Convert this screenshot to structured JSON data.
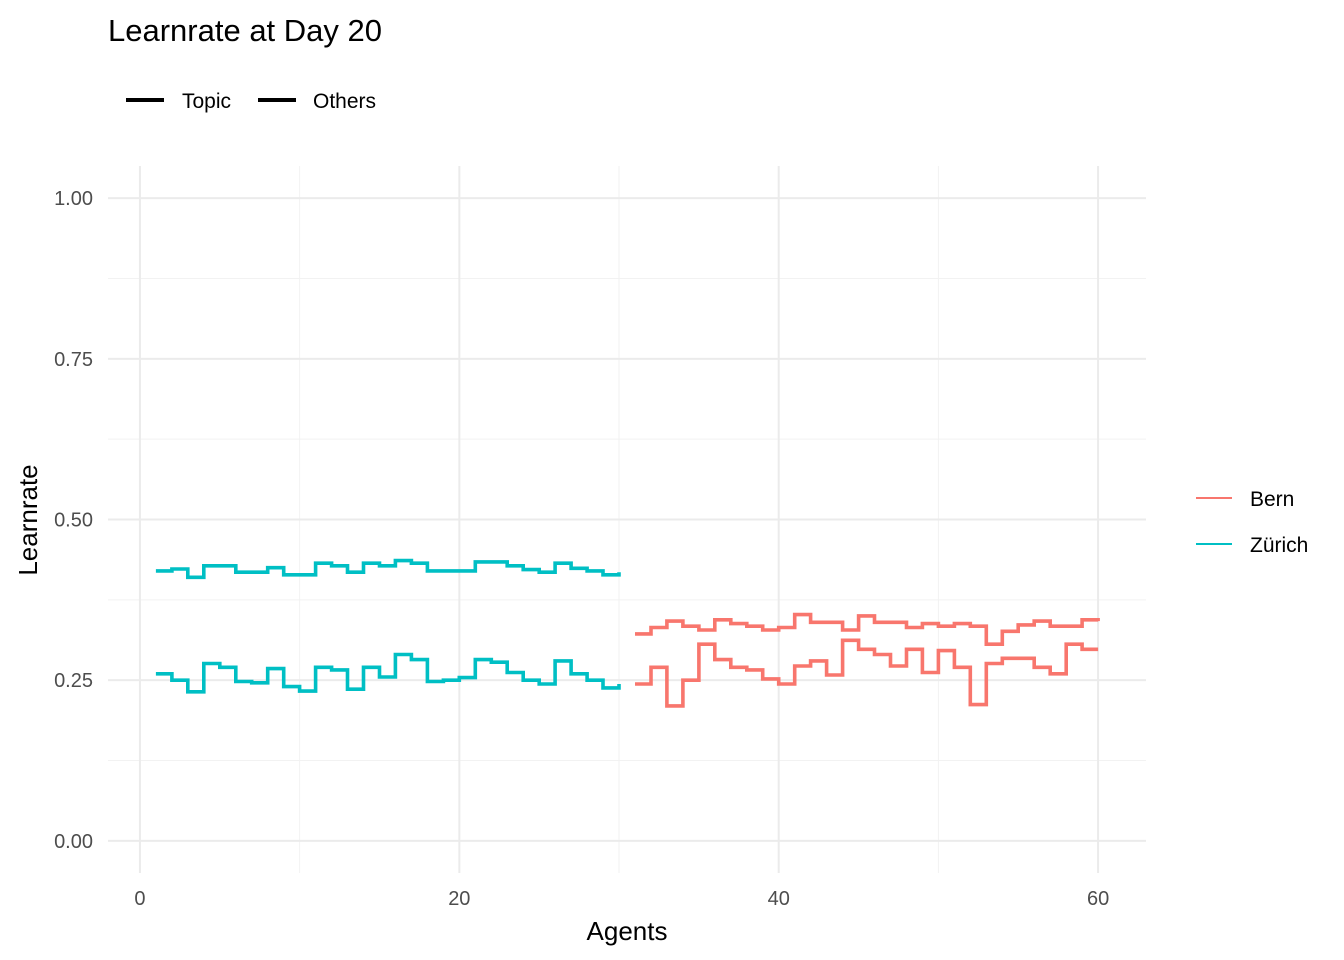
{
  "chart_data": {
    "type": "line",
    "step": true,
    "title": "Learnrate at Day 20",
    "xlabel": "Agents",
    "ylabel": "Learnrate",
    "xlim": [
      -2,
      63
    ],
    "ylim": [
      -0.05,
      1.05
    ],
    "x_ticks": [
      0,
      20,
      40,
      60
    ],
    "y_ticks": [
      0.0,
      0.25,
      0.5,
      0.75,
      1.0
    ],
    "x_tick_labels": [
      "0",
      "20",
      "40",
      "60"
    ],
    "y_tick_labels": [
      "0.00",
      "0.25",
      "0.50",
      "0.75",
      "1.00"
    ],
    "grid": true,
    "linetype_legend": {
      "placement": "top-left",
      "entries": [
        "Topic",
        "Others"
      ]
    },
    "color_legend": {
      "placement": "right",
      "entries": [
        {
          "name": "Bern",
          "color": "#F8766D"
        },
        {
          "name": "Zürich",
          "color": "#00BFC4"
        }
      ]
    },
    "series": [
      {
        "name": "Zürich",
        "type": "Topic",
        "color": "#00BFC4",
        "x": [
          1,
          2,
          3,
          4,
          5,
          6,
          7,
          8,
          9,
          10,
          11,
          12,
          13,
          14,
          15,
          16,
          17,
          18,
          19,
          20,
          21,
          22,
          23,
          24,
          25,
          26,
          27,
          28,
          29,
          30
        ],
        "y": [
          0.42,
          0.423,
          0.41,
          0.428,
          0.428,
          0.418,
          0.418,
          0.425,
          0.414,
          0.414,
          0.432,
          0.428,
          0.418,
          0.432,
          0.428,
          0.436,
          0.432,
          0.42,
          0.42,
          0.42,
          0.434,
          0.434,
          0.428,
          0.422,
          0.418,
          0.432,
          0.424,
          0.42,
          0.414,
          0.418
        ]
      },
      {
        "name": "Zürich",
        "type": "Others",
        "color": "#00BFC4",
        "x": [
          1,
          2,
          3,
          4,
          5,
          6,
          7,
          8,
          9,
          10,
          11,
          12,
          13,
          14,
          15,
          16,
          17,
          18,
          19,
          20,
          21,
          22,
          23,
          24,
          25,
          26,
          27,
          28,
          29,
          30
        ],
        "y": [
          0.26,
          0.25,
          0.232,
          0.276,
          0.27,
          0.248,
          0.246,
          0.268,
          0.24,
          0.233,
          0.27,
          0.266,
          0.236,
          0.27,
          0.255,
          0.29,
          0.282,
          0.248,
          0.25,
          0.254,
          0.282,
          0.278,
          0.262,
          0.25,
          0.244,
          0.28,
          0.26,
          0.25,
          0.238,
          0.244
        ]
      },
      {
        "name": "Bern",
        "type": "Topic",
        "color": "#F8766D",
        "x": [
          31,
          32,
          33,
          34,
          35,
          36,
          37,
          38,
          39,
          40,
          41,
          42,
          43,
          44,
          45,
          46,
          47,
          48,
          49,
          50,
          51,
          52,
          53,
          54,
          55,
          56,
          57,
          58,
          59,
          60
        ],
        "y": [
          0.322,
          0.332,
          0.342,
          0.334,
          0.328,
          0.344,
          0.338,
          0.334,
          0.328,
          0.332,
          0.352,
          0.34,
          0.34,
          0.328,
          0.35,
          0.34,
          0.34,
          0.332,
          0.338,
          0.334,
          0.338,
          0.334,
          0.306,
          0.326,
          0.336,
          0.342,
          0.334,
          0.334,
          0.344,
          0.342
        ]
      },
      {
        "name": "Bern",
        "type": "Others",
        "color": "#F8766D",
        "x": [
          31,
          32,
          33,
          34,
          35,
          36,
          37,
          38,
          39,
          40,
          41,
          42,
          43,
          44,
          45,
          46,
          47,
          48,
          49,
          50,
          51,
          52,
          53,
          54,
          55,
          56,
          57,
          58,
          59,
          60
        ],
        "y": [
          0.244,
          0.27,
          0.21,
          0.25,
          0.306,
          0.282,
          0.27,
          0.266,
          0.252,
          0.244,
          0.272,
          0.28,
          0.258,
          0.312,
          0.298,
          0.29,
          0.272,
          0.298,
          0.262,
          0.296,
          0.27,
          0.212,
          0.276,
          0.284,
          0.284,
          0.27,
          0.26,
          0.306,
          0.298,
          0.298
        ]
      }
    ]
  }
}
